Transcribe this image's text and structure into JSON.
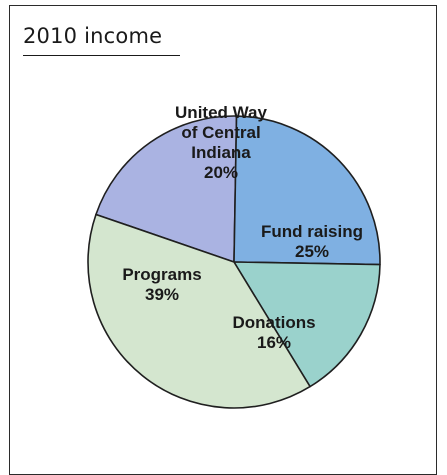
{
  "chart_data": {
    "type": "pie",
    "title": "2010 income",
    "slices": [
      {
        "label_lines": [
          "United Way",
          "of Central",
          "Indiana"
        ],
        "pct_label": "20%",
        "value": 20,
        "color": "#aab3e2"
      },
      {
        "label_lines": [
          "Fund raising"
        ],
        "pct_label": "25%",
        "value": 25,
        "color": "#7fb0e2"
      },
      {
        "label_lines": [
          "Donations"
        ],
        "pct_label": "16%",
        "value": 16,
        "color": "#9ad2cc"
      },
      {
        "label_lines": [
          "Programs"
        ],
        "pct_label": "39%",
        "value": 39,
        "color": "#d4e6cf"
      }
    ]
  }
}
